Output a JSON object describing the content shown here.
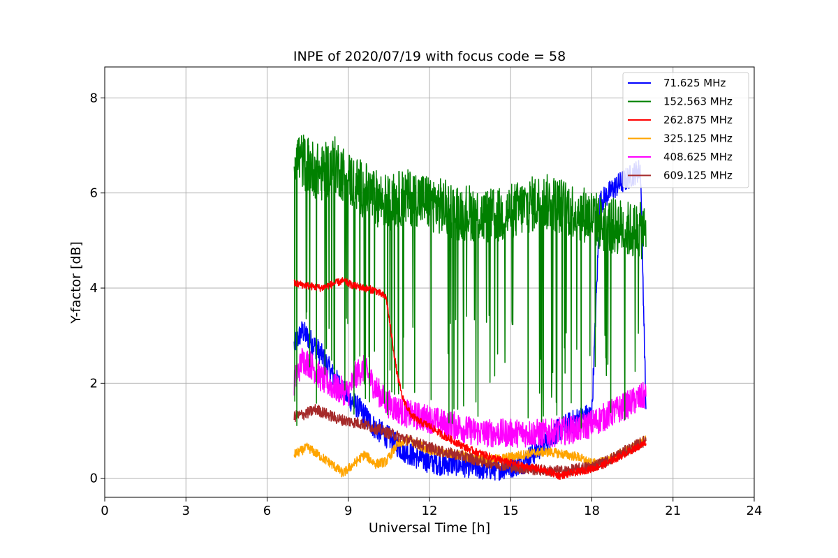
{
  "chart_data": {
    "type": "line",
    "title": "INPE of 2020/07/19 with focus code = 58",
    "xlabel": "Universal Time [h]",
    "ylabel": "Y-factor [dB]",
    "xlim": [
      0,
      24
    ],
    "ylim": [
      -0.4,
      8.65
    ],
    "xticks": [
      0,
      3,
      6,
      9,
      12,
      15,
      18,
      21,
      24
    ],
    "yticks": [
      0,
      2,
      4,
      6,
      8
    ],
    "grid": true,
    "legend_position": "top-right",
    "series": [
      {
        "name": " 71.625 MHz",
        "color": "#0000ff",
        "x": [
          7.0,
          7.3,
          7.6,
          8.0,
          8.5,
          9.0,
          9.5,
          10.0,
          10.5,
          11.0,
          11.5,
          12.0,
          12.5,
          13.0,
          13.5,
          14.0,
          14.5,
          15.0,
          15.5,
          16.0,
          16.5,
          17.0,
          17.5,
          18.0,
          18.3,
          18.8,
          19.3,
          19.8,
          20.0
        ],
        "y": [
          2.8,
          3.1,
          2.9,
          2.6,
          2.1,
          1.7,
          1.4,
          1.05,
          0.85,
          0.6,
          0.45,
          0.35,
          0.3,
          0.3,
          0.25,
          0.2,
          0.2,
          0.25,
          0.35,
          0.6,
          0.9,
          1.1,
          1.25,
          1.35,
          5.8,
          6.1,
          6.3,
          6.5,
          1.4
        ],
        "amp": 0.25
      },
      {
        "name": "152.563 MHz",
        "color": "#008000",
        "x": [
          7.0,
          7.5,
          8.0,
          8.5,
          9.0,
          9.5,
          10.0,
          10.5,
          11.0,
          11.5,
          12.0,
          12.5,
          13.0,
          13.5,
          14.0,
          14.5,
          15.0,
          15.5,
          16.0,
          16.5,
          17.0,
          17.5,
          18.0,
          18.5,
          19.0,
          19.5,
          20.0
        ],
        "y": [
          6.8,
          6.6,
          6.4,
          6.6,
          6.3,
          6.1,
          5.9,
          5.8,
          5.9,
          5.9,
          5.8,
          5.7,
          5.6,
          5.6,
          5.5,
          5.5,
          5.6,
          5.7,
          5.8,
          5.8,
          5.7,
          5.6,
          5.5,
          5.3,
          5.3,
          5.2,
          5.2
        ],
        "amp": 0.6,
        "dip_floor": 1.0
      },
      {
        "name": "262.875 MHz",
        "color": "#ff0000",
        "x": [
          7.0,
          7.5,
          8.0,
          8.5,
          8.8,
          9.2,
          9.6,
          10.0,
          10.4,
          10.6,
          10.8,
          11.0,
          11.3,
          11.6,
          12.0,
          12.5,
          13.0,
          13.5,
          14.0,
          14.5,
          15.0,
          15.5,
          16.0,
          16.5,
          16.8,
          17.2,
          17.6,
          18.0,
          18.5,
          19.0,
          19.5,
          20.0
        ],
        "y": [
          4.1,
          4.05,
          4.0,
          4.1,
          4.15,
          4.05,
          4.0,
          3.95,
          3.8,
          3.0,
          2.2,
          1.7,
          1.35,
          1.2,
          1.1,
          0.9,
          0.75,
          0.6,
          0.5,
          0.4,
          0.32,
          0.25,
          0.2,
          0.12,
          0.05,
          0.1,
          0.15,
          0.2,
          0.3,
          0.45,
          0.6,
          0.75
        ],
        "amp": 0.08
      },
      {
        "name": "325.125 MHz",
        "color": "#ffa500",
        "x": [
          7.0,
          7.5,
          8.0,
          8.5,
          8.8,
          9.2,
          9.6,
          10.0,
          10.4,
          10.8,
          11.2,
          11.6,
          12.0,
          12.5,
          13.0,
          13.5,
          14.0,
          14.5,
          15.0,
          15.5,
          16.0,
          16.5,
          17.0,
          17.5,
          18.0,
          18.5,
          19.0,
          19.5,
          20.0
        ],
        "y": [
          0.5,
          0.65,
          0.45,
          0.25,
          0.1,
          0.3,
          0.5,
          0.3,
          0.35,
          0.7,
          0.8,
          0.7,
          0.6,
          0.55,
          0.5,
          0.45,
          0.4,
          0.4,
          0.45,
          0.5,
          0.55,
          0.55,
          0.5,
          0.45,
          0.3,
          0.35,
          0.5,
          0.65,
          0.8
        ],
        "amp": 0.1
      },
      {
        "name": "408.625 MHz",
        "color": "#ff00ff",
        "x": [
          7.0,
          7.3,
          7.6,
          8.0,
          8.5,
          9.0,
          9.3,
          9.6,
          10.0,
          10.4,
          10.8,
          11.2,
          11.6,
          12.0,
          12.5,
          13.0,
          13.5,
          14.0,
          14.5,
          15.0,
          15.5,
          16.0,
          16.5,
          17.0,
          17.5,
          18.0,
          18.5,
          19.0,
          19.5,
          20.0
        ],
        "y": [
          2.0,
          2.5,
          2.4,
          2.1,
          1.9,
          1.8,
          2.2,
          2.3,
          1.9,
          1.6,
          1.45,
          1.35,
          1.3,
          1.25,
          1.15,
          1.1,
          1.0,
          0.95,
          0.95,
          0.95,
          0.95,
          0.95,
          0.95,
          1.0,
          1.05,
          1.15,
          1.3,
          1.45,
          1.6,
          1.75
        ],
        "amp": 0.3
      },
      {
        "name": "609.125 MHz",
        "color": "#a52a2a",
        "x": [
          7.0,
          7.4,
          7.8,
          8.2,
          8.6,
          9.0,
          9.5,
          10.0,
          10.5,
          11.0,
          11.5,
          12.0,
          12.5,
          13.0,
          13.5,
          14.0,
          14.5,
          15.0,
          15.5,
          16.0,
          16.5,
          17.0,
          17.5,
          18.0,
          18.5,
          19.0,
          19.5,
          20.0
        ],
        "y": [
          1.3,
          1.35,
          1.45,
          1.35,
          1.25,
          1.2,
          1.15,
          1.05,
          0.95,
          0.85,
          0.75,
          0.65,
          0.55,
          0.5,
          0.42,
          0.35,
          0.3,
          0.25,
          0.2,
          0.18,
          0.15,
          0.15,
          0.2,
          0.25,
          0.35,
          0.5,
          0.65,
          0.8
        ],
        "amp": 0.12
      }
    ]
  }
}
